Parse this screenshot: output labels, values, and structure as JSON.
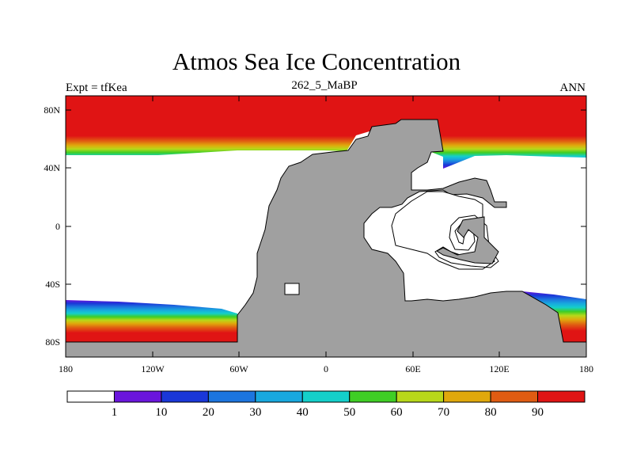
{
  "header": {
    "title": "Atmos Sea Ice Concentration",
    "subtitle": "262_5_MaBP",
    "left_label": "Expt = tfKea",
    "right_label": "ANN"
  },
  "map": {
    "projection": "cylindrical equidistant",
    "lon_range": [
      -180,
      180
    ],
    "lat_range": [
      -90,
      90
    ],
    "x_ticks": [
      "180",
      "120W",
      "60W",
      "0",
      "60E",
      "120E",
      "180"
    ],
    "y_ticks": [
      "80N",
      "40N",
      "0",
      "40S",
      "80S"
    ],
    "land_color": "#a0a0a0",
    "ocean_color": "#ffffff"
  },
  "colorbar": {
    "labels": [
      "1",
      "10",
      "20",
      "30",
      "40",
      "50",
      "60",
      "70",
      "80",
      "90"
    ],
    "colors": [
      "#ffffff",
      "#6a15dc",
      "#1a37d8",
      "#1c75de",
      "#18a8de",
      "#14cfca",
      "#3fce25",
      "#b8d81a",
      "#e0a80c",
      "#e05c12",
      "#e01414"
    ]
  }
}
